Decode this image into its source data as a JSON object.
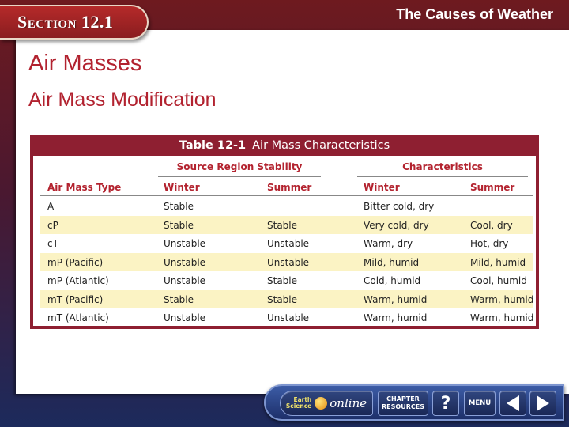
{
  "header": {
    "section_label": "Section 12.1",
    "chapter_title": "The Causes of Weather"
  },
  "content": {
    "heading": "Air Masses",
    "subheading": "Air Mass Modification"
  },
  "table": {
    "number": "Table 12-1",
    "title": "Air Mass Characteristics",
    "group_headers": [
      "Source Region Stability",
      "Characteristics"
    ],
    "columns": [
      "Air Mass Type",
      "Winter",
      "Summer",
      "Winter",
      "Summer"
    ],
    "rows": [
      [
        "A",
        "Stable",
        "",
        "Bitter cold, dry",
        ""
      ],
      [
        "cP",
        "Stable",
        "Stable",
        "Very cold, dry",
        "Cool, dry"
      ],
      [
        "cT",
        "Unstable",
        "Unstable",
        "Warm, dry",
        "Hot, dry"
      ],
      [
        "mP (Pacific)",
        "Unstable",
        "Unstable",
        "Mild, humid",
        "Mild, humid"
      ],
      [
        "mP (Atlantic)",
        "Unstable",
        "Stable",
        "Cold, humid",
        "Cool, humid"
      ],
      [
        "mT (Pacific)",
        "Stable",
        "Stable",
        "Warm, humid",
        "Warm, humid"
      ],
      [
        "mT (Atlantic)",
        "Unstable",
        "Unstable",
        "Warm, humid",
        "Warm, humid"
      ]
    ]
  },
  "navbar": {
    "earth_label": "Earth",
    "science_label": "Science",
    "online_label": "online",
    "chapter_line1": "CHAPTER",
    "chapter_line2": "RESOURCES",
    "help_label": "?",
    "menu_label": "MENU"
  },
  "icons": {
    "prev": "triangle-left-icon",
    "next": "triangle-right-icon",
    "globe": "globe-icon"
  },
  "colors": {
    "heading": "#b2222f",
    "table_frame": "#8e1f31",
    "row_highlight": "#fbf3c4",
    "nav_blue": "#1d2f6a"
  }
}
